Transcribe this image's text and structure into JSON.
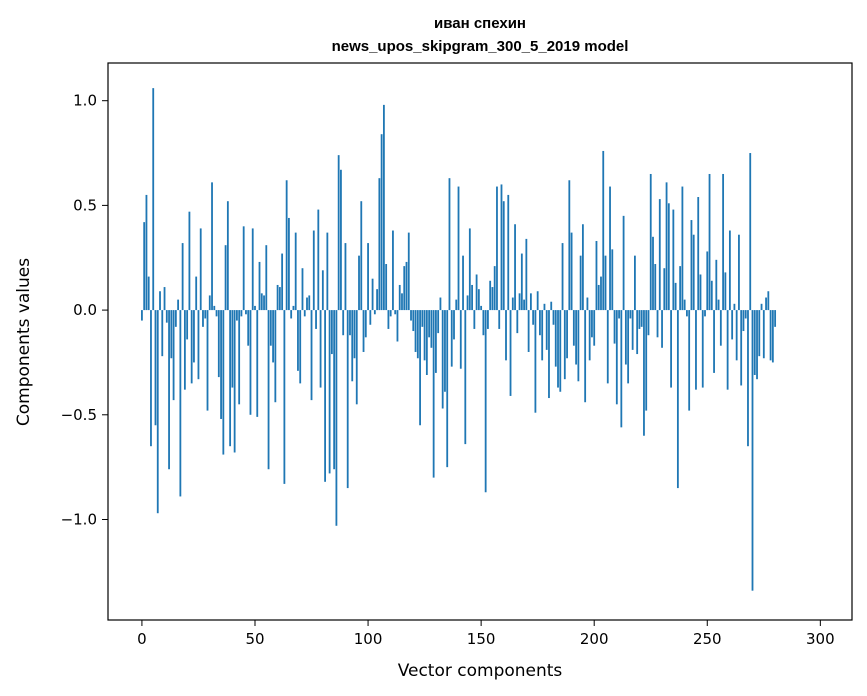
{
  "chart_data": {
    "type": "bar",
    "title_line1": "иван спехин",
    "title_line2": "news_upos_skipgram_300_5_2019 model",
    "xlabel": "Vector components",
    "ylabel": "Components values",
    "xlim": [
      -15,
      314
    ],
    "ylim": [
      -1.48,
      1.18
    ],
    "xticks": [
      0,
      50,
      100,
      150,
      200,
      250,
      300
    ],
    "xtick_labels": [
      "0",
      "50",
      "100",
      "150",
      "200",
      "250",
      "300"
    ],
    "yticks": [
      -1.0,
      -0.5,
      0.0,
      0.5,
      1.0
    ],
    "ytick_labels": [
      "−1.0",
      "−0.5",
      "0.0",
      "0.5",
      "1.0"
    ],
    "color": "#1f77b4",
    "values": [
      -0.05,
      0.42,
      0.55,
      0.16,
      -0.65,
      1.06,
      -0.55,
      -0.97,
      0.09,
      -0.22,
      0.11,
      -0.06,
      -0.76,
      -0.23,
      -0.43,
      -0.08,
      0.05,
      -0.89,
      0.32,
      -0.38,
      -0.14,
      0.47,
      -0.35,
      -0.25,
      0.16,
      -0.33,
      0.39,
      -0.08,
      -0.04,
      -0.48,
      0.07,
      0.61,
      0.02,
      -0.03,
      -0.32,
      -0.52,
      -0.69,
      0.31,
      0.52,
      -0.65,
      -0.37,
      -0.68,
      -0.05,
      -0.45,
      -0.03,
      0.4,
      -0.02,
      -0.17,
      -0.5,
      0.39,
      0.02,
      -0.51,
      0.23,
      0.08,
      0.07,
      0.31,
      -0.76,
      -0.17,
      -0.25,
      -0.44,
      0.12,
      0.11,
      0.27,
      -0.83,
      0.62,
      0.44,
      -0.04,
      0.02,
      0.37,
      -0.29,
      -0.35,
      0.2,
      -0.03,
      0.06,
      0.07,
      -0.43,
      0.38,
      -0.09,
      0.48,
      -0.37,
      0.19,
      -0.82,
      0.37,
      -0.78,
      -0.21,
      -0.76,
      -1.03,
      0.74,
      0.67,
      -0.12,
      0.32,
      -0.85,
      -0.12,
      -0.34,
      -0.23,
      -0.45,
      0.26,
      0.52,
      -0.2,
      -0.13,
      0.32,
      -0.07,
      0.15,
      -0.02,
      0.1,
      0.63,
      0.84,
      0.98,
      0.22,
      -0.09,
      -0.03,
      0.38,
      -0.02,
      -0.15,
      0.12,
      0.08,
      0.21,
      0.23,
      0.37,
      -0.05,
      -0.1,
      -0.2,
      -0.23,
      -0.55,
      -0.08,
      -0.24,
      -0.31,
      -0.13,
      -0.18,
      -0.8,
      -0.3,
      -0.11,
      0.06,
      -0.47,
      -0.39,
      -0.75,
      0.63,
      -0.27,
      -0.14,
      0.05,
      0.59,
      -0.28,
      0.26,
      -0.64,
      0.07,
      0.39,
      0.12,
      -0.09,
      0.17,
      0.1,
      0.02,
      -0.12,
      -0.87,
      -0.09,
      0.14,
      0.11,
      0.21,
      0.59,
      -0.09,
      0.6,
      0.52,
      -0.24,
      0.55,
      -0.41,
      0.06,
      0.41,
      -0.11,
      0.08,
      0.27,
      0.05,
      0.34,
      -0.2,
      0.08,
      -0.07,
      -0.49,
      0.09,
      -0.12,
      -0.24,
      0.03,
      -0.19,
      -0.42,
      0.04,
      -0.07,
      -0.27,
      -0.37,
      -0.39,
      0.32,
      -0.33,
      -0.23,
      0.62,
      0.37,
      -0.17,
      -0.26,
      -0.34,
      0.26,
      0.41,
      -0.44,
      0.06,
      -0.24,
      -0.13,
      -0.17,
      0.33,
      0.12,
      0.16,
      0.76,
      0.26,
      -0.35,
      0.59,
      0.29,
      -0.16,
      -0.45,
      -0.04,
      -0.56,
      0.45,
      -0.26,
      -0.35,
      -0.04,
      -0.19,
      0.26,
      -0.21,
      -0.09,
      -0.08,
      -0.6,
      -0.48,
      -0.12,
      0.65,
      0.35,
      0.22,
      -0.13,
      0.53,
      -0.18,
      0.2,
      0.61,
      0.51,
      -0.37,
      0.48,
      0.13,
      -0.85,
      0.21,
      0.59,
      0.05,
      -0.03,
      -0.48,
      0.43,
      0.36,
      -0.38,
      0.54,
      0.17,
      -0.37,
      -0.03,
      0.28,
      0.65,
      0.14,
      -0.3,
      0.24,
      0.05,
      -0.17,
      0.65,
      0.18,
      -0.38,
      0.38,
      -0.14,
      0.03,
      -0.24,
      0.36,
      -0.36,
      -0.1,
      -0.04,
      -0.65,
      0.75,
      -1.34,
      -0.31,
      -0.33,
      -0.22,
      0.03,
      -0.23,
      0.06,
      0.09,
      -0.24,
      -0.25,
      -0.08
    ]
  }
}
